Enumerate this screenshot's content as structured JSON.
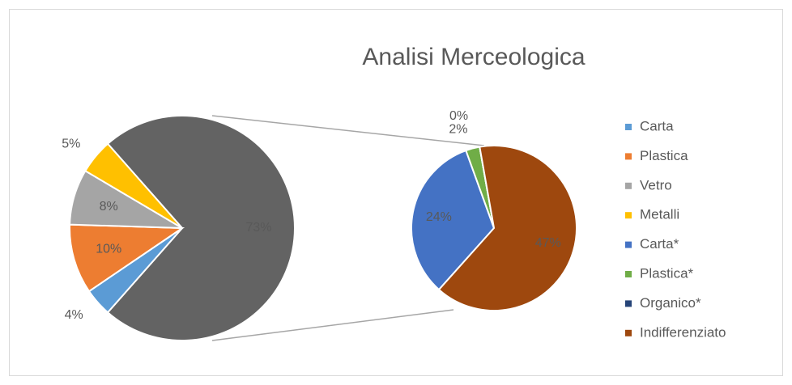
{
  "chart_data": {
    "type": "pie-of-pie",
    "title": "Analisi Merceologica",
    "categories": [
      "Carta",
      "Plastica",
      "Vetro",
      "Metalli",
      "Carta*",
      "Plastica*",
      "Organico*",
      "Indifferenziato"
    ],
    "values": [
      4,
      10,
      8,
      5,
      24,
      2,
      0,
      47
    ],
    "value_labels": [
      "4%",
      "10%",
      "8%",
      "5%",
      "24%",
      "2%",
      "0%",
      "47%"
    ],
    "colors": [
      "#5b9bd5",
      "#ed7d31",
      "#a5a5a5",
      "#ffc000",
      "#4472c4",
      "#70ad47",
      "#264478",
      "#9e480e"
    ],
    "second_plot_count": 4,
    "combined": {
      "value": 73,
      "label": "73%",
      "color": "#636363"
    },
    "legend": "right"
  }
}
